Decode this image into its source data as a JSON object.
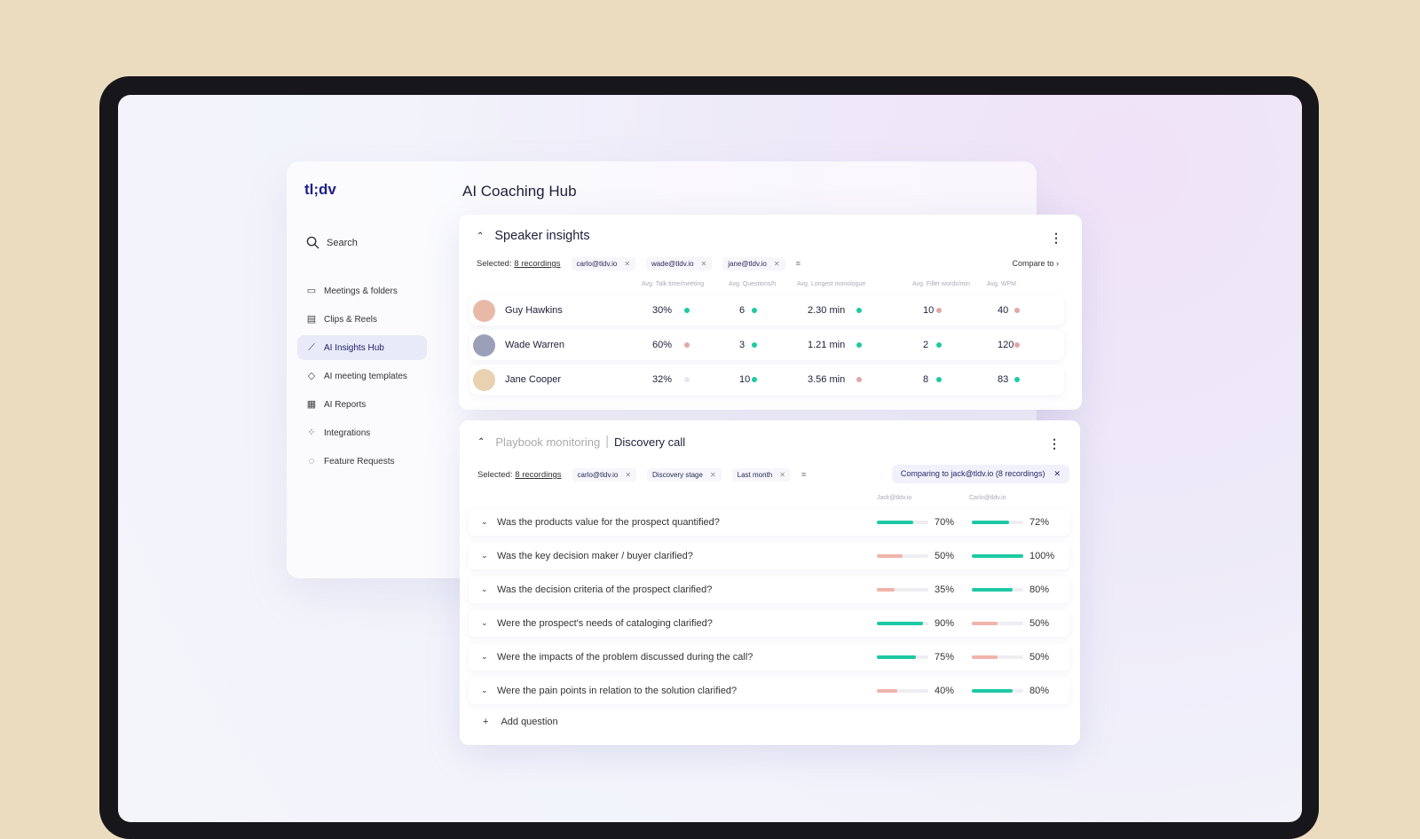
{
  "app": {
    "logo": "tl;dv",
    "title": "AI Coaching Hub",
    "search_placeholder": "Search"
  },
  "sidebar": {
    "items": [
      {
        "label": "Meetings & folders",
        "icon": "video-icon"
      },
      {
        "label": "Clips & Reels",
        "icon": "clapper-icon"
      },
      {
        "label": "AI Insights Hub",
        "icon": "trend-icon",
        "active": true
      },
      {
        "label": "AI meeting templates",
        "icon": "tag-icon"
      },
      {
        "label": "AI Reports",
        "icon": "report-icon"
      },
      {
        "label": "Integrations",
        "icon": "grid-icon"
      },
      {
        "label": "Feature Requests",
        "icon": "bulb-icon"
      }
    ]
  },
  "speaker": {
    "title": "Speaker insights",
    "selected_label": "Selected:",
    "recordings": "8 recordings",
    "chips": [
      "carlo@tldv.io",
      "wade@tldv.io",
      "jane@tldv.io"
    ],
    "compare": "Compare to",
    "columns": [
      "Avg. Talk time/meeting",
      "Avg. Questions/h",
      "Avg. Longest monologue",
      "Avg. Filler words/min",
      "Avg. WPM"
    ],
    "rows": [
      {
        "name": "Guy Hawkins",
        "values": [
          "30%",
          "6",
          "2.30 min",
          "10",
          "40"
        ],
        "status": [
          "good",
          "good",
          "good",
          "bad",
          "bad"
        ]
      },
      {
        "name": "Wade Warren",
        "values": [
          "60%",
          "3",
          "1.21 min",
          "2",
          "120"
        ],
        "status": [
          "bad",
          "good",
          "good",
          "good",
          "bad"
        ]
      },
      {
        "name": "Jane Cooper",
        "values": [
          "32%",
          "10",
          "3.56 min",
          "8",
          "83"
        ],
        "status": [
          "neutral",
          "good",
          "bad",
          "good",
          "good"
        ]
      }
    ]
  },
  "playbook": {
    "title_muted": "Playbook monitoring",
    "separator": "|",
    "title": "Discovery call",
    "selected_label": "Selected:",
    "recordings": "8 recordings",
    "chips": [
      "carlo@tldv.io",
      "Discovery stage",
      "Last month"
    ],
    "comparing": "Comparing to jack@tldv.io (8 recordings)",
    "columns": [
      "Jack@tldv.io",
      "Carlo@tldv.io"
    ],
    "questions": [
      {
        "text": "Was the products value for the prospect quantified?",
        "a": 70,
        "a_label": "70%",
        "b": 72,
        "b_label": "72%"
      },
      {
        "text": "Was the key decision maker / buyer clarified?",
        "a": 50,
        "a_label": "50%",
        "b": 100,
        "b_label": "100%"
      },
      {
        "text": "Was the decision criteria of the prospect clarified?",
        "a": 35,
        "a_label": "35%",
        "b": 80,
        "b_label": "80%"
      },
      {
        "text": "Were the prospect's needs of cataloging clarified?",
        "a": 90,
        "a_label": "90%",
        "b": 50,
        "b_label": "50%"
      },
      {
        "text": "Were the impacts of the problem discussed during the call?",
        "a": 75,
        "a_label": "75%",
        "b": 50,
        "b_label": "50%"
      },
      {
        "text": "Were the pain points in relation to the solution clarified?",
        "a": 40,
        "a_label": "40%",
        "b": 80,
        "b_label": "80%"
      }
    ],
    "add_question": "Add question"
  },
  "colors": {
    "good": "#1fc9a2",
    "bad": "#e3a6a6",
    "neutral": "#e6e6ee",
    "bar_high": "#1dc9a4",
    "bar_low": "#f1b3aa",
    "background": "#ecdcbf"
  }
}
